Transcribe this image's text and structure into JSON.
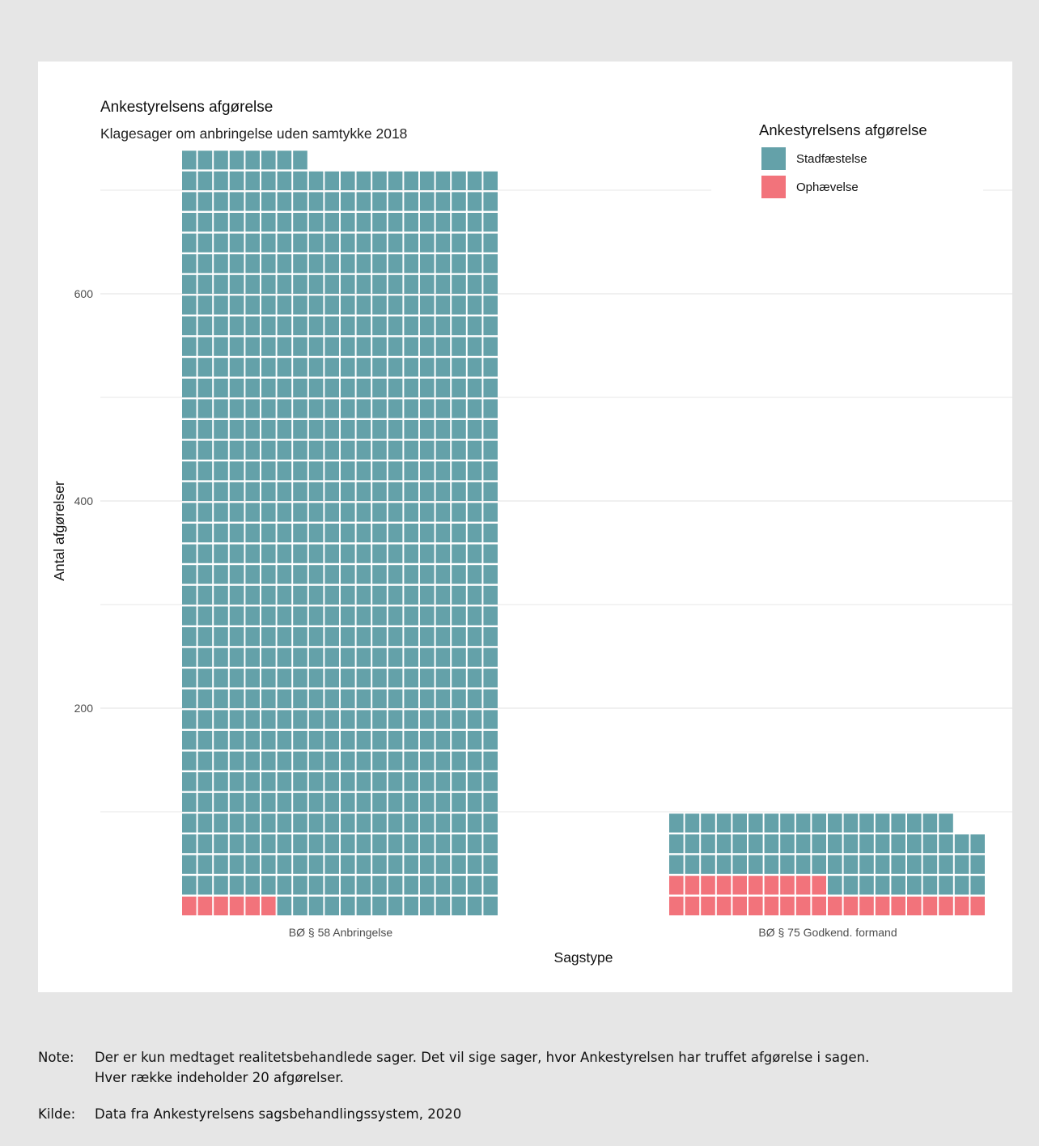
{
  "chart_data": {
    "type": "waffle",
    "title": "Ankestyrelsens afgørelse",
    "subtitle": "Klagesager om anbringelse uden samtykke 2018",
    "xlabel": "Sagstype",
    "ylabel": "Antal afgørelser",
    "categories": [
      "BØ § 58 Anbringelse",
      "BØ § 75 Godkend. formand"
    ],
    "series": [
      {
        "name": "Stadfæstelse",
        "color": "#64a1a9",
        "values": [
          722,
          68
        ]
      },
      {
        "name": "Ophævelse",
        "color": "#f2737b",
        "values": [
          6,
          30
        ]
      }
    ],
    "units_per_row": 20,
    "y_ticks": [
      200,
      400,
      600
    ],
    "ylim": [
      0,
      740
    ],
    "grid": true,
    "legend_title": "Ankestyrelsens afgørelse",
    "legend_position": "top-right"
  },
  "footnotes": {
    "note_label": "Note:",
    "note_line1": "Der er kun medtaget realitetsbehandlede sager. Det vil sige sager, hvor Ankestyrelsen har truffet afgørelse i sagen.",
    "note_line2": "Hver række indeholder 20 afgørelser.",
    "source_label": "Kilde:",
    "source_text": "Data fra Ankestyrelsens sagsbehandlingssystem, 2020"
  }
}
